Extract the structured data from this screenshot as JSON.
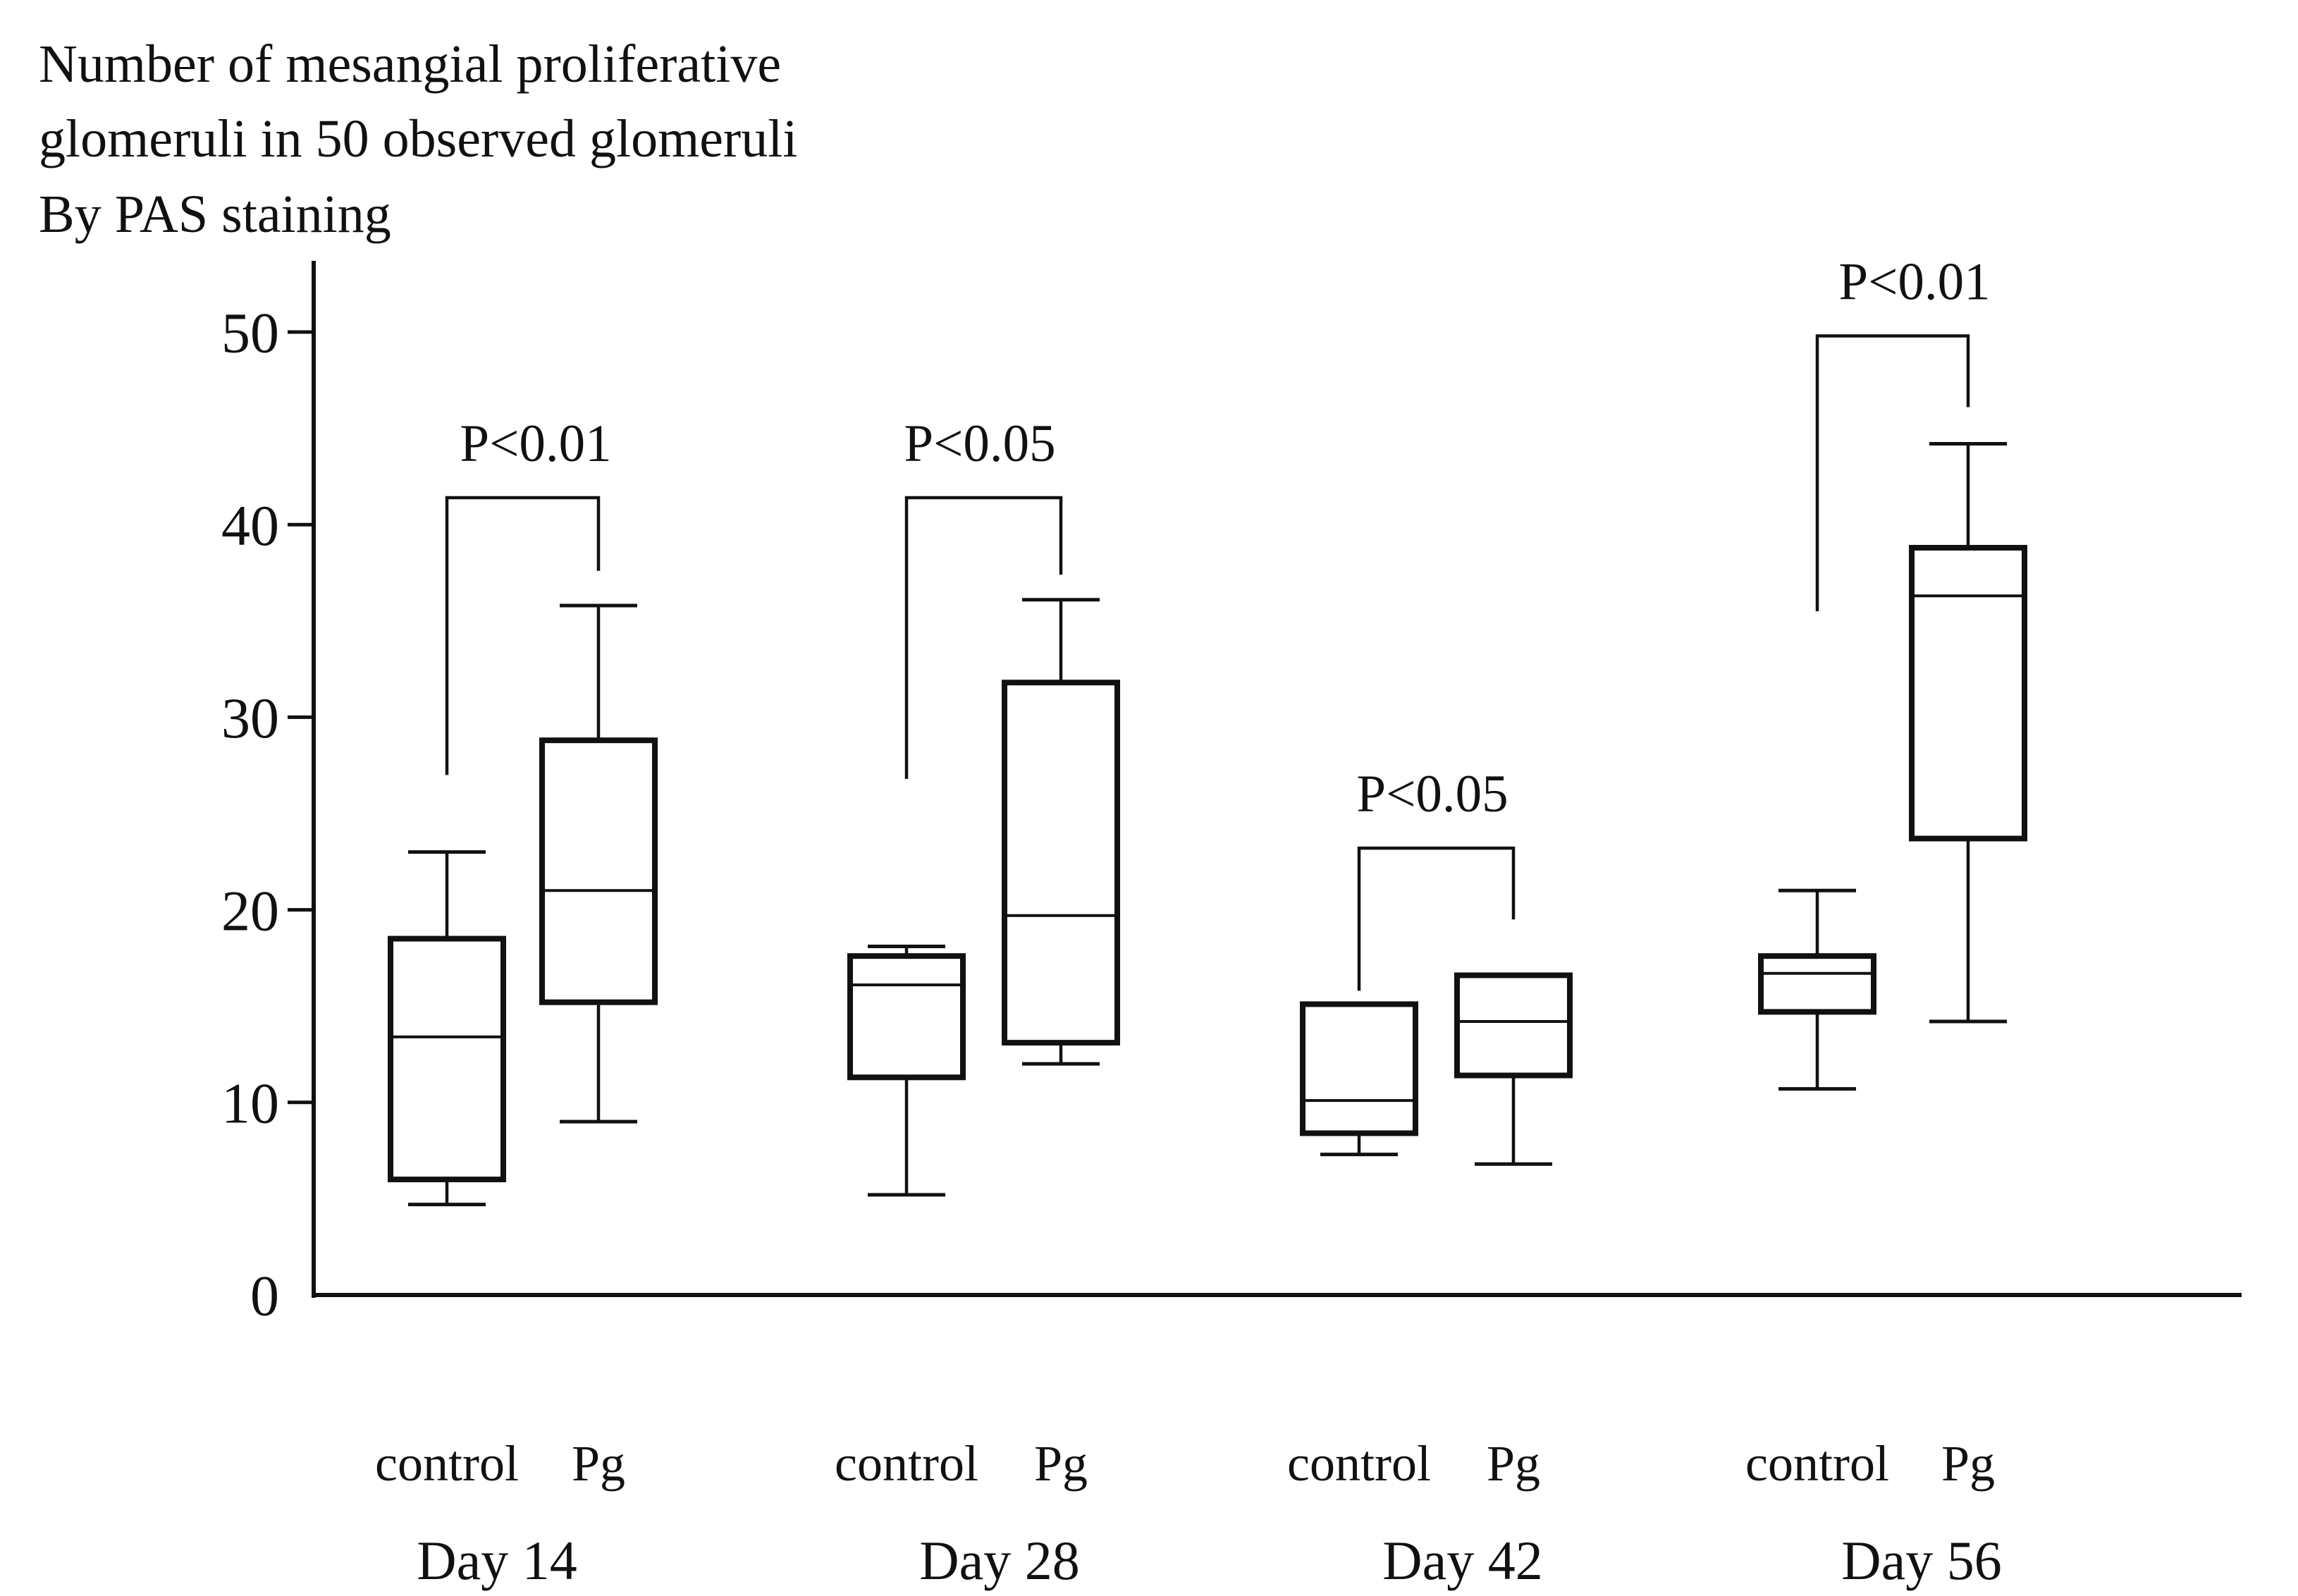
{
  "chart_data": {
    "type": "box",
    "title": "Number of mesangial proliferative\nglomeruli in 50 observed glomeruli\nBy PAS staining",
    "xlabel": "",
    "ylabel": "",
    "ylim": [
      0,
      50
    ],
    "yticks": [
      0,
      10,
      20,
      30,
      40,
      50
    ],
    "grid": false,
    "legend_position": "none",
    "axis_color": "#111111",
    "box_fill": "#ffffff",
    "box_stroke": "#111111",
    "series_labels": [
      "control",
      "Pg"
    ],
    "groups": [
      {
        "day": "Day 14",
        "boxes": [
          {
            "label": "control",
            "min": 4.7,
            "q1": 6.0,
            "median": 13.4,
            "q3": 18.5,
            "max": 23.0
          },
          {
            "label": "Pg",
            "min": 9.0,
            "q1": 15.2,
            "median": 21.0,
            "q3": 28.8,
            "max": 35.8
          }
        ],
        "significance": {
          "label": "P<0.01",
          "bar_y": 41.4,
          "left_drop_y": 27.0,
          "right_drop_y": 37.6
        }
      },
      {
        "day": "Day 28",
        "boxes": [
          {
            "label": "control",
            "min": 5.2,
            "q1": 11.3,
            "median": 16.1,
            "q3": 17.6,
            "max": 18.1
          },
          {
            "label": "Pg",
            "min": 12.0,
            "q1": 13.1,
            "median": 19.7,
            "q3": 31.8,
            "max": 36.1
          }
        ],
        "significance": {
          "label": "P<0.05",
          "bar_y": 41.4,
          "left_drop_y": 26.8,
          "right_drop_y": 37.4
        }
      },
      {
        "day": "Day 42",
        "boxes": [
          {
            "label": "control",
            "min": 7.3,
            "q1": 8.4,
            "median": 10.1,
            "q3": 15.1,
            "max": null
          },
          {
            "label": "Pg",
            "min": 6.8,
            "q1": 11.4,
            "median": 14.2,
            "q3": 16.6,
            "max": null
          }
        ],
        "significance": {
          "label": "P<0.05",
          "bar_y": 23.2,
          "left_drop_y": 15.8,
          "right_drop_y": 19.5
        }
      },
      {
        "day": "Day 56",
        "boxes": [
          {
            "label": "control",
            "min": 10.7,
            "q1": 14.7,
            "median": 16.7,
            "q3": 17.6,
            "max": 21.0
          },
          {
            "label": "Pg",
            "min": 14.2,
            "q1": 23.7,
            "median": 36.3,
            "q3": 38.8,
            "max": 44.2
          }
        ],
        "significance": {
          "label": "P<0.01",
          "bar_y": 49.8,
          "left_drop_y": 35.5,
          "right_drop_y": 46.1
        }
      }
    ]
  }
}
